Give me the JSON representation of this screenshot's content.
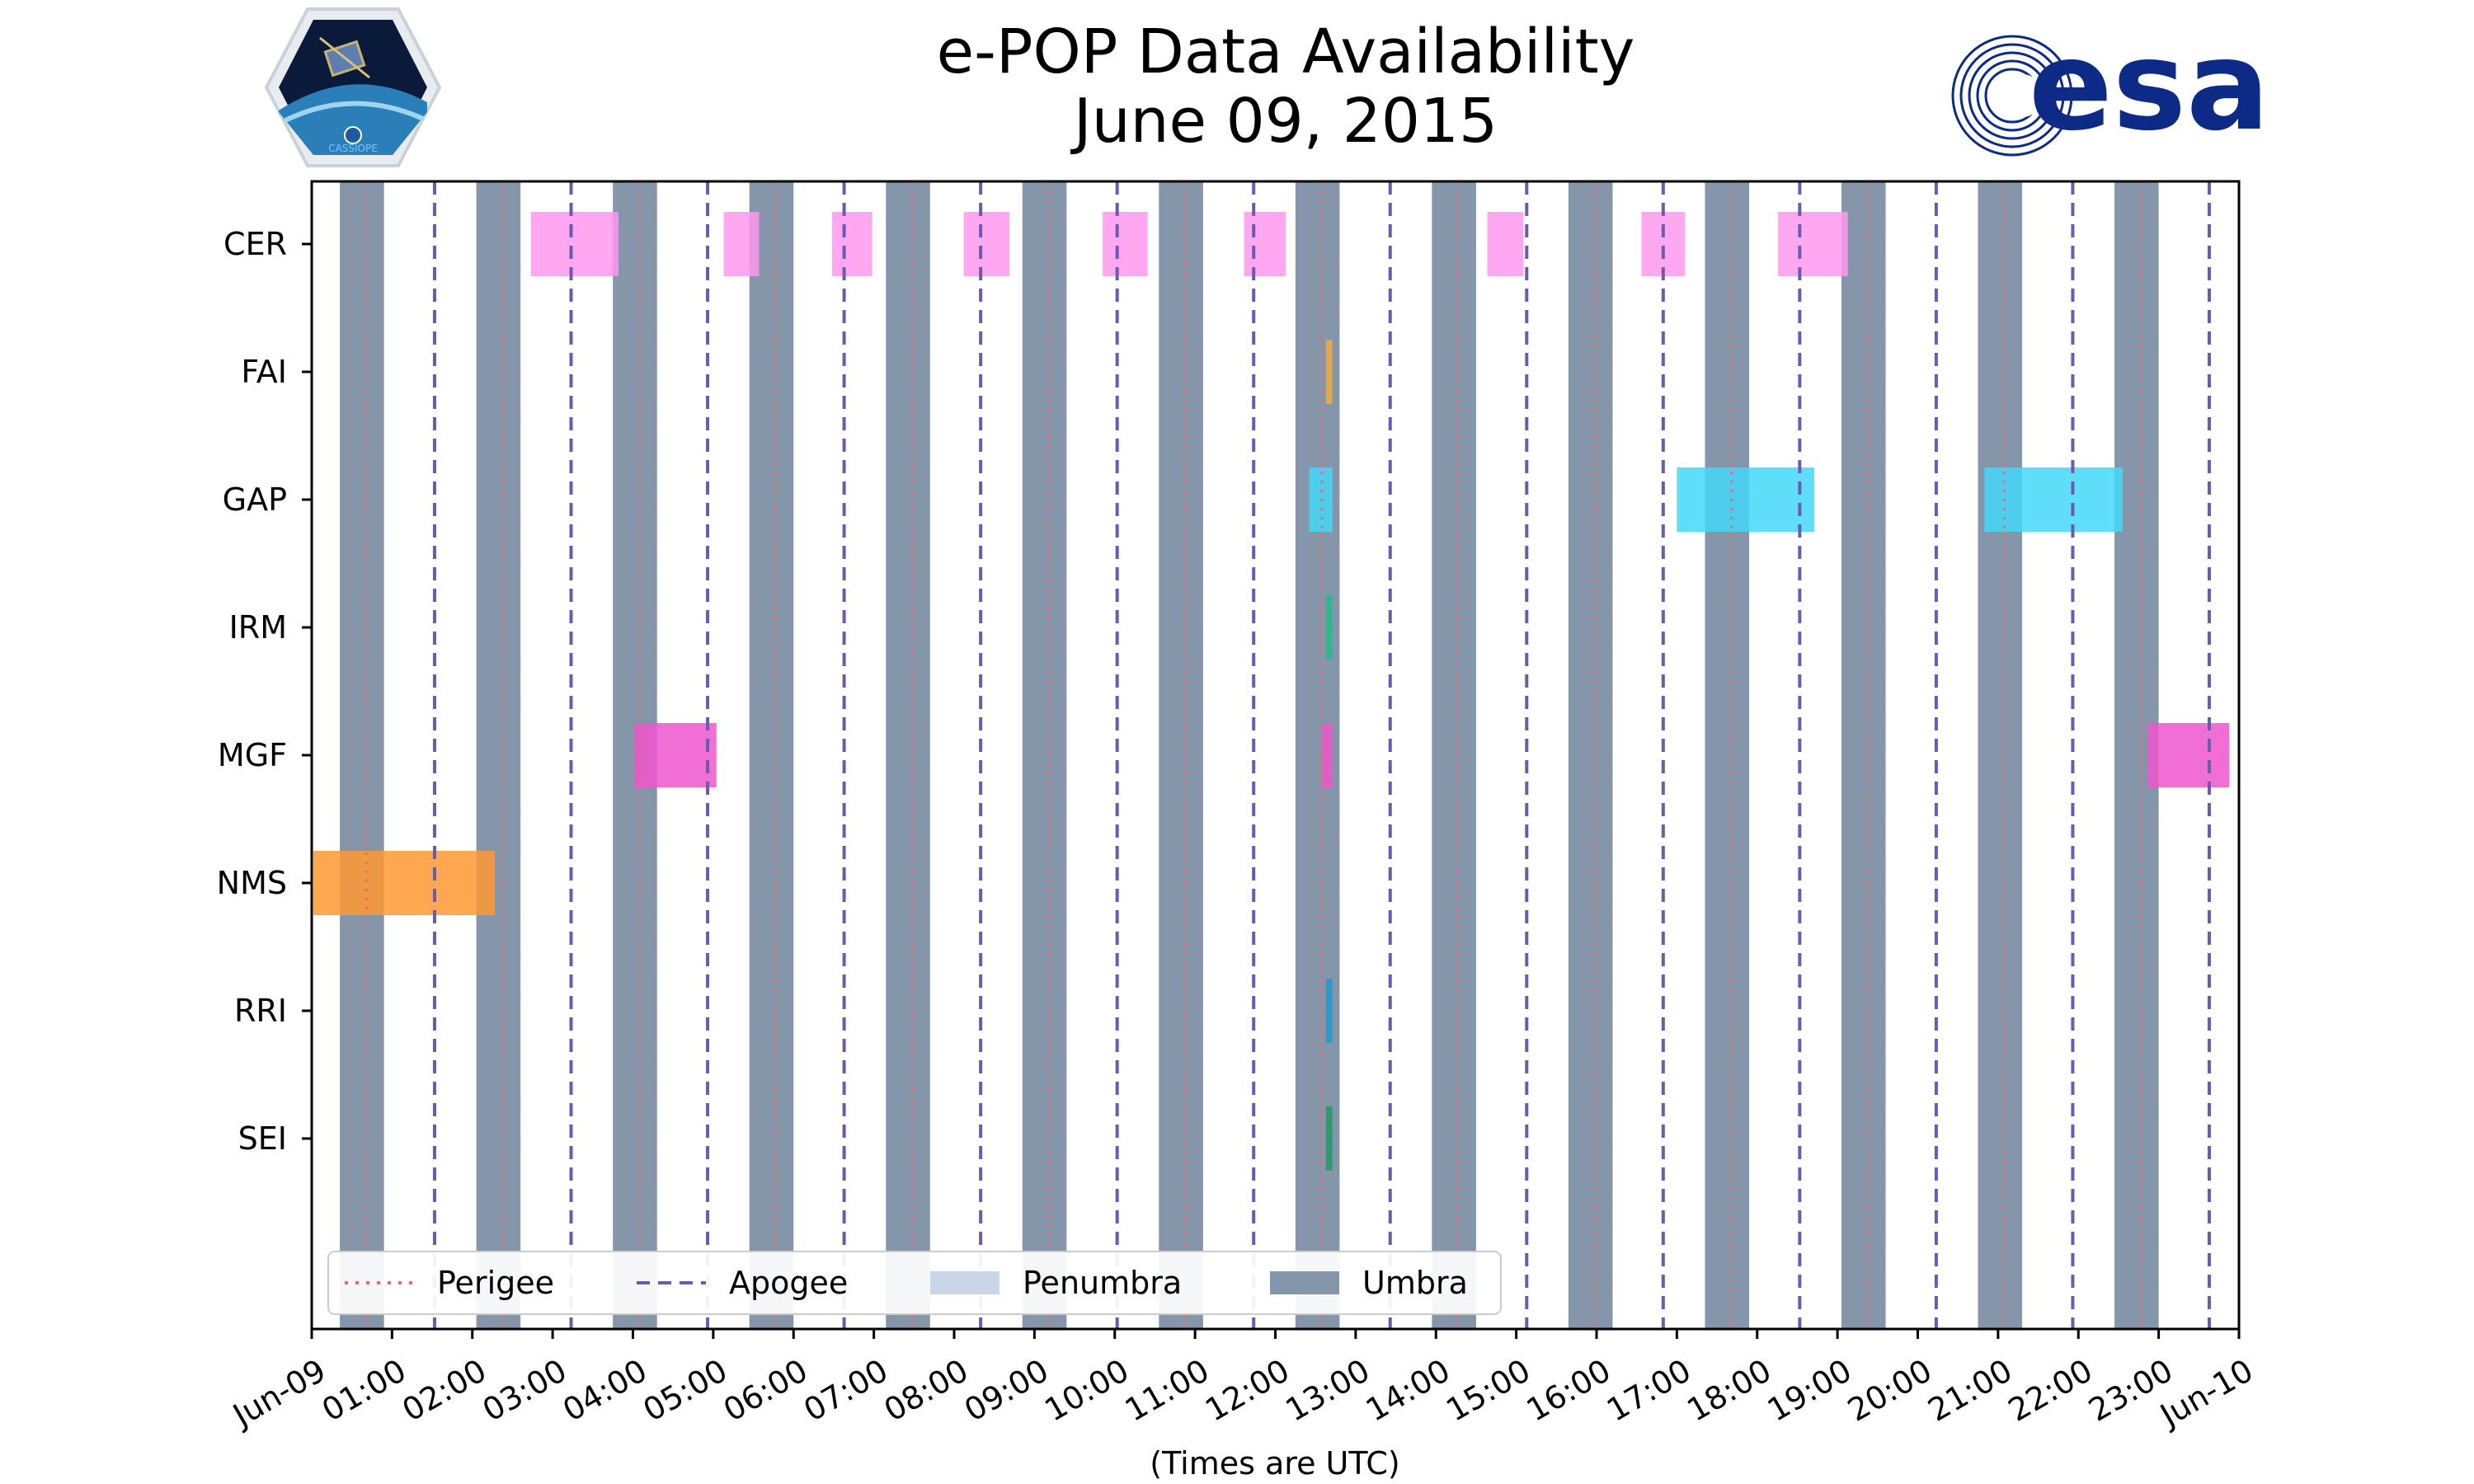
{
  "header": {
    "title_line1": "e-POP Data Availability",
    "title_line2": "June 09, 2015"
  },
  "logos": {
    "left": {
      "name": "CASSIOPE mission logo",
      "text": "CASSIOPE"
    },
    "right": {
      "name": "ESA logo",
      "text": "esa",
      "color": "#0d2a86"
    }
  },
  "chart_data": {
    "type": "timeline",
    "title": "e-POP Data Availability June 09, 2015",
    "xlabel": "(Times are UTC)",
    "ylabel": "",
    "x_unit": "hours UTC",
    "xlim": [
      0,
      24
    ],
    "x_ticks": [
      0,
      1,
      2,
      3,
      4,
      5,
      6,
      7,
      8,
      9,
      10,
      11,
      12,
      13,
      14,
      15,
      16,
      17,
      18,
      19,
      20,
      21,
      22,
      23,
      24
    ],
    "x_tick_labels": [
      "Jun-09",
      "01:00",
      "02:00",
      "03:00",
      "04:00",
      "05:00",
      "06:00",
      "07:00",
      "08:00",
      "09:00",
      "10:00",
      "11:00",
      "12:00",
      "13:00",
      "14:00",
      "15:00",
      "16:00",
      "17:00",
      "18:00",
      "19:00",
      "20:00",
      "21:00",
      "22:00",
      "23:00",
      "Jun-10"
    ],
    "instruments": [
      "CER",
      "FAI",
      "GAP",
      "IRM",
      "MGF",
      "NMS",
      "RRI",
      "SEI"
    ],
    "instrument_colors": {
      "CER": "#ff99ee",
      "FAI": "#eeaa44",
      "GAP": "#44d8f8",
      "IRM": "#22bb88",
      "MGF": "#ee55cc",
      "NMS": "#ff9933",
      "RRI": "#2299cc",
      "SEI": "#229966"
    },
    "availability": [
      {
        "instrument": "CER",
        "start": 2.73,
        "end": 3.82
      },
      {
        "instrument": "CER",
        "start": 5.13,
        "end": 5.57
      },
      {
        "instrument": "CER",
        "start": 6.48,
        "end": 6.98
      },
      {
        "instrument": "CER",
        "start": 8.12,
        "end": 8.69
      },
      {
        "instrument": "CER",
        "start": 9.85,
        "end": 10.41
      },
      {
        "instrument": "CER",
        "start": 11.61,
        "end": 12.13
      },
      {
        "instrument": "CER",
        "start": 14.64,
        "end": 15.09
      },
      {
        "instrument": "CER",
        "start": 16.56,
        "end": 17.1
      },
      {
        "instrument": "CER",
        "start": 18.26,
        "end": 19.13
      },
      {
        "instrument": "FAI",
        "start": 12.63,
        "end": 12.71
      },
      {
        "instrument": "GAP",
        "start": 12.42,
        "end": 12.71
      },
      {
        "instrument": "GAP",
        "start": 17.0,
        "end": 18.71
      },
      {
        "instrument": "GAP",
        "start": 20.83,
        "end": 22.55
      },
      {
        "instrument": "IRM",
        "start": 12.63,
        "end": 12.71
      },
      {
        "instrument": "MGF",
        "start": 4.02,
        "end": 5.04
      },
      {
        "instrument": "MGF",
        "start": 12.58,
        "end": 12.71
      },
      {
        "instrument": "MGF",
        "start": 22.86,
        "end": 23.88
      },
      {
        "instrument": "NMS",
        "start": -0.18,
        "end": 2.28
      },
      {
        "instrument": "RRI",
        "start": 12.63,
        "end": 12.71
      },
      {
        "instrument": "SEI",
        "start": 12.63,
        "end": 12.71
      }
    ],
    "umbra": [
      [
        0.35,
        0.9
      ],
      [
        2.05,
        2.6
      ],
      [
        3.75,
        4.3
      ],
      [
        5.45,
        6.0
      ],
      [
        7.15,
        7.7
      ],
      [
        8.85,
        9.4
      ],
      [
        10.55,
        11.1
      ],
      [
        12.25,
        12.8
      ],
      [
        13.95,
        14.5
      ],
      [
        15.65,
        16.2
      ],
      [
        17.35,
        17.9
      ],
      [
        19.05,
        19.6
      ],
      [
        20.75,
        21.3
      ],
      [
        22.45,
        23.0
      ]
    ],
    "perigee": [
      0.68,
      2.38,
      4.08,
      5.78,
      7.48,
      9.18,
      10.88,
      12.58,
      14.28,
      15.98,
      17.68,
      19.38,
      21.08,
      22.78
    ],
    "apogee": [
      1.53,
      3.23,
      4.93,
      6.63,
      8.33,
      10.03,
      11.73,
      13.43,
      15.13,
      16.83,
      18.53,
      20.23,
      21.93,
      23.63
    ],
    "legend": {
      "location": "lower-left",
      "entries": [
        {
          "label": "Perigee",
          "style": "dotted-line",
          "color": "#f06a6a"
        },
        {
          "label": "Apogee",
          "style": "dashed-line",
          "color": "#6a5ab0"
        },
        {
          "label": "Penumbra",
          "style": "patch",
          "color": "#c8d6e8"
        },
        {
          "label": "Umbra",
          "style": "patch",
          "color": "#8596aa"
        }
      ]
    },
    "colors": {
      "umbra": "#8596aa",
      "penumbra": "#c8d6e8",
      "perigee": "#f06a6a",
      "apogee": "#6a5ab0"
    }
  }
}
